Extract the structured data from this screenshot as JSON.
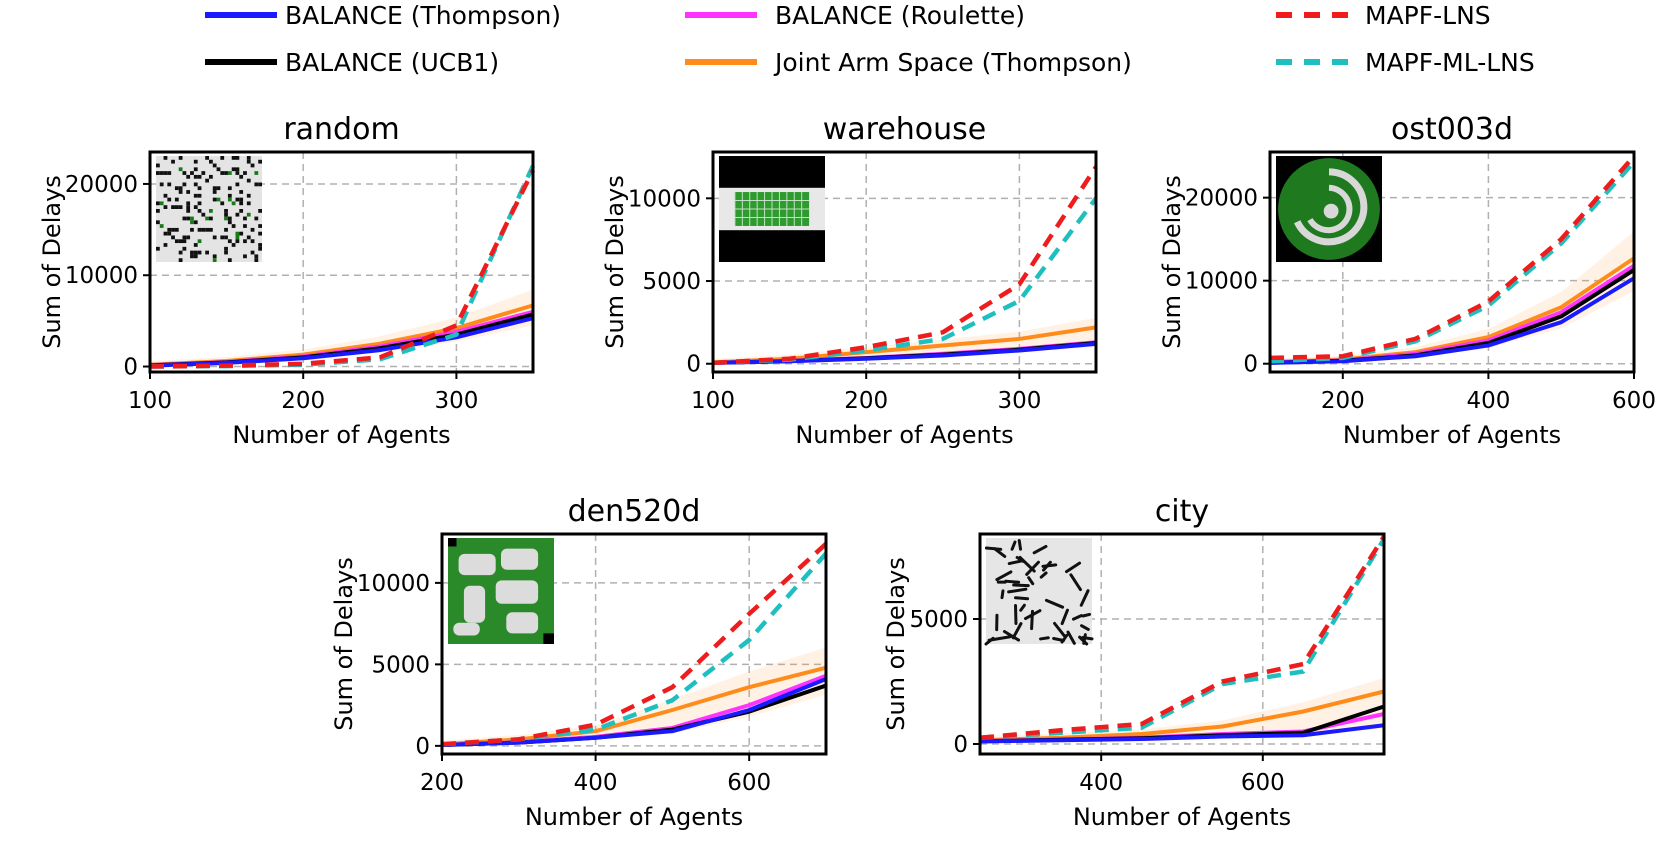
{
  "legend": {
    "entries": [
      {
        "key": "balance_thompson",
        "label": "BALANCE (Thompson)",
        "color": "#1a1aff",
        "dashed": false
      },
      {
        "key": "balance_roulette",
        "label": "BALANCE (Roulette)",
        "color": "#ff33ff",
        "dashed": false
      },
      {
        "key": "mapf_lns",
        "label": "MAPF-LNS",
        "color": "#ee1c1c",
        "dashed": true
      },
      {
        "key": "balance_ucb1",
        "label": "BALANCE (UCB1)",
        "color": "#000000",
        "dashed": false
      },
      {
        "key": "joint_arm",
        "label": "Joint Arm Space (Thompson)",
        "color": "#ff8c1a",
        "dashed": false
      },
      {
        "key": "mapf_ml_lns",
        "label": "MAPF-ML-LNS",
        "color": "#1fbfbf",
        "dashed": true
      }
    ]
  },
  "chart_data": [
    {
      "type": "line",
      "title": "random",
      "xlabel": "Number of Agents",
      "ylabel": "Sum of Delays",
      "map_icon": "random-map",
      "xlim": [
        100,
        350
      ],
      "ylim": [
        -600,
        23500
      ],
      "xticks": [
        100,
        200,
        300
      ],
      "yticks": [
        0,
        10000,
        20000
      ],
      "x": [
        100,
        150,
        200,
        250,
        300,
        350
      ],
      "series": [
        {
          "key": "balance_thompson",
          "values": [
            100,
            400,
            900,
            1800,
            3200,
            5300
          ]
        },
        {
          "key": "balance_roulette",
          "values": [
            150,
            500,
            1100,
            2200,
            3800,
            6000
          ]
        },
        {
          "key": "balance_ucb1",
          "values": [
            120,
            450,
            1000,
            2000,
            3500,
            5700
          ]
        },
        {
          "key": "joint_arm",
          "values": [
            200,
            600,
            1300,
            2500,
            4200,
            6700
          ]
        },
        {
          "key": "mapf_lns",
          "values": [
            0,
            100,
            300,
            1000,
            4500,
            21500
          ]
        },
        {
          "key": "mapf_ml_lns",
          "values": [
            0,
            50,
            200,
            800,
            3500,
            22000
          ]
        }
      ]
    },
    {
      "type": "line",
      "title": "warehouse",
      "xlabel": "Number of Agents",
      "ylabel": "Sum of Delays",
      "map_icon": "warehouse-map",
      "xlim": [
        100,
        350
      ],
      "ylim": [
        -500,
        12800
      ],
      "xticks": [
        100,
        200,
        300
      ],
      "yticks": [
        0,
        5000,
        10000
      ],
      "x": [
        100,
        150,
        200,
        250,
        300,
        350
      ],
      "series": [
        {
          "key": "balance_thompson",
          "values": [
            50,
            150,
            300,
            500,
            800,
            1200
          ]
        },
        {
          "key": "balance_roulette",
          "values": [
            60,
            180,
            350,
            600,
            900,
            1300
          ]
        },
        {
          "key": "balance_ucb1",
          "values": [
            55,
            160,
            330,
            550,
            850,
            1250
          ]
        },
        {
          "key": "joint_arm",
          "values": [
            80,
            300,
            700,
            1100,
            1500,
            2200
          ]
        },
        {
          "key": "mapf_lns",
          "values": [
            50,
            300,
            1000,
            1900,
            4800,
            11900
          ]
        },
        {
          "key": "mapf_ml_lns",
          "values": [
            50,
            250,
            800,
            1500,
            3800,
            10000
          ]
        }
      ]
    },
    {
      "type": "line",
      "title": "ost003d",
      "xlabel": "Number of Agents",
      "ylabel": "Sum of Delays",
      "map_icon": "ost003d-map",
      "xlim": [
        100,
        600
      ],
      "ylim": [
        -1000,
        25500
      ],
      "xticks": [
        200,
        400,
        600
      ],
      "yticks": [
        0,
        10000,
        20000
      ],
      "x": [
        100,
        200,
        300,
        400,
        500,
        600
      ],
      "series": [
        {
          "key": "balance_thompson",
          "values": [
            100,
            300,
            900,
            2200,
            5000,
            10300
          ]
        },
        {
          "key": "balance_roulette",
          "values": [
            150,
            400,
            1200,
            2800,
            6200,
            11800
          ]
        },
        {
          "key": "balance_ucb1",
          "values": [
            120,
            350,
            1000,
            2500,
            5700,
            11300
          ]
        },
        {
          "key": "joint_arm",
          "values": [
            200,
            500,
            1400,
            3200,
            6800,
            12700
          ]
        },
        {
          "key": "mapf_lns",
          "values": [
            700,
            900,
            3000,
            7500,
            15000,
            25000
          ]
        },
        {
          "key": "mapf_ml_lns",
          "values": [
            300,
            700,
            2700,
            7000,
            14500,
            24300
          ]
        }
      ]
    },
    {
      "type": "line",
      "title": "den520d",
      "xlabel": "Number of Agents",
      "ylabel": "Sum of Delays",
      "map_icon": "den520d-map",
      "xlim": [
        200,
        700
      ],
      "ylim": [
        -500,
        13000
      ],
      "xticks": [
        200,
        400,
        600
      ],
      "yticks": [
        0,
        5000,
        10000
      ],
      "x": [
        200,
        300,
        400,
        500,
        600,
        700
      ],
      "series": [
        {
          "key": "balance_thompson",
          "values": [
            50,
            200,
            500,
            900,
            2200,
            4100
          ]
        },
        {
          "key": "balance_roulette",
          "values": [
            60,
            220,
            550,
            1100,
            2500,
            4300
          ]
        },
        {
          "key": "balance_ucb1",
          "values": [
            50,
            200,
            500,
            1000,
            2100,
            3700
          ]
        },
        {
          "key": "joint_arm",
          "values": [
            100,
            400,
            900,
            2200,
            3600,
            4800
          ]
        },
        {
          "key": "mapf_lns",
          "values": [
            100,
            400,
            1300,
            3600,
            8100,
            12400
          ]
        },
        {
          "key": "mapf_ml_lns",
          "values": [
            100,
            400,
            1000,
            2800,
            6500,
            11800
          ]
        }
      ]
    },
    {
      "type": "line",
      "title": "city",
      "xlabel": "Number of Agents",
      "ylabel": "Sum of Delays",
      "map_icon": "city-map",
      "xlim": [
        250,
        750
      ],
      "ylim": [
        -400,
        8400
      ],
      "xticks": [
        400,
        600
      ],
      "yticks": [
        0,
        5000
      ],
      "x": [
        250,
        350,
        450,
        550,
        650,
        750
      ],
      "series": [
        {
          "key": "balance_thompson",
          "values": [
            100,
            150,
            200,
            300,
            350,
            750
          ]
        },
        {
          "key": "balance_roulette",
          "values": [
            120,
            180,
            250,
            400,
            500,
            1200
          ]
        },
        {
          "key": "balance_ucb1",
          "values": [
            110,
            170,
            230,
            350,
            450,
            1500
          ]
        },
        {
          "key": "joint_arm",
          "values": [
            150,
            250,
            400,
            700,
            1300,
            2100
          ]
        },
        {
          "key": "mapf_lns",
          "values": [
            250,
            550,
            800,
            2500,
            3200,
            8300
          ]
        },
        {
          "key": "mapf_ml_lns",
          "values": [
            250,
            450,
            650,
            2400,
            2900,
            8200
          ]
        }
      ]
    }
  ]
}
